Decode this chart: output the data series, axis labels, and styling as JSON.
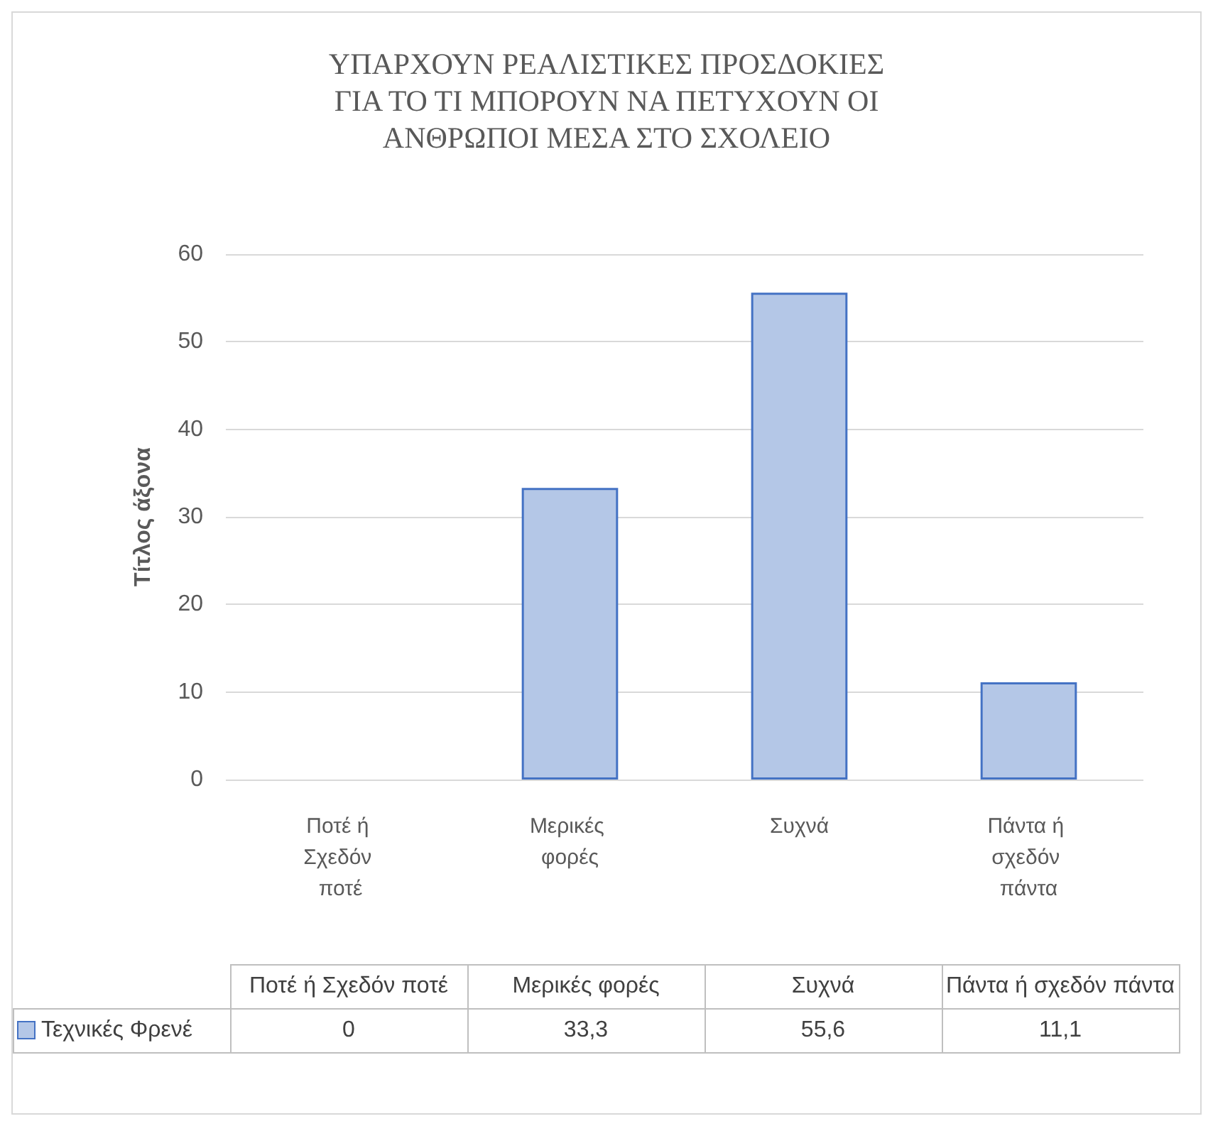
{
  "chart_data": {
    "type": "bar",
    "title": "ΥΠΑΡΧΟΥΝ ΡΕΑΛΙΣΤΙΚΕΣ ΠΡΟΣΔΟΚΙΕΣ\nΓΙΑ ΤΟ ΤΙ ΜΠΟΡΟΥΝ ΝΑ ΠΕΤΥΧΟΥΝ ΟΙ\nΑΝΘΡΩΠΟΙ ΜΕΣΑ ΣΤΟ ΣΧΟΛΕΙΟ",
    "ylabel": "Τίτλος άξονα",
    "categories": [
      "Ποτέ ή Σχεδόν ποτέ",
      "Μερικές φορές",
      "Συχνά",
      "Πάντα ή σχεδόν πάντα"
    ],
    "series": [
      {
        "name": "Τεχνικές Φρενέ",
        "color": "#b4c7e7",
        "values": [
          0,
          33.3,
          55.6,
          11.1
        ],
        "value_labels": [
          "0",
          "33,3",
          "55,6",
          "11,1"
        ]
      }
    ],
    "ylim": [
      0,
      60
    ],
    "yticks": [
      0,
      10,
      20,
      30,
      40,
      50,
      60
    ],
    "grid": "y"
  }
}
